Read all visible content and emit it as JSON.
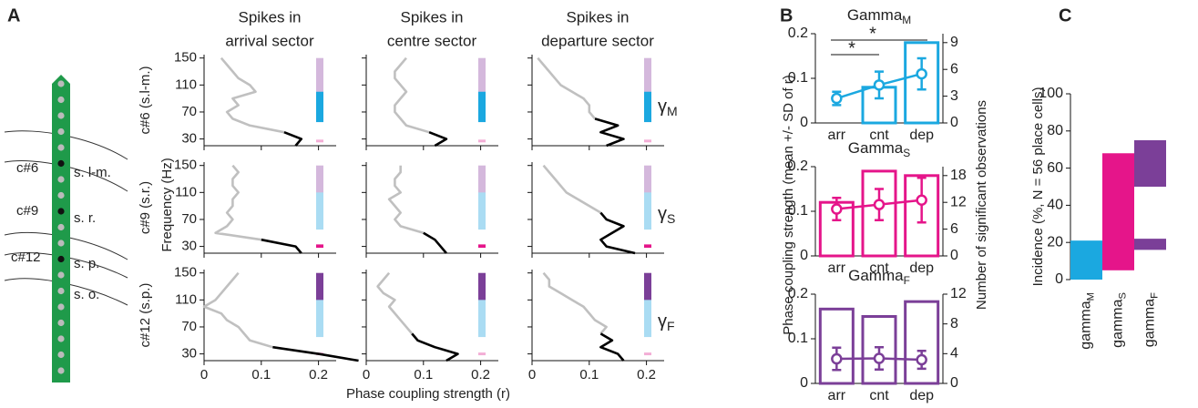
{
  "panel_labels": [
    "A",
    "B",
    "C"
  ],
  "probe": {
    "cells": [
      "c#6",
      "c#9",
      "c#12"
    ],
    "layers": [
      "s. l-m.",
      "s. r.",
      "s. p.",
      "s. o."
    ]
  },
  "panel_a": {
    "column_titles": [
      {
        "lines": [
          "Spikes in",
          "arrival sector"
        ],
        "color": "#e8141c"
      },
      {
        "lines": [
          "Spikes in",
          "centre sector"
        ],
        "color": "#f08c1e"
      },
      {
        "lines": [
          "Spikes in",
          "departure sector"
        ],
        "color": "#1aa64a"
      }
    ],
    "ylabel": "Frequency (Hz)",
    "xlabel": "Phase coupling strength (r)",
    "rows": [
      {
        "label": "c#6 (s.l-m.)",
        "gamma": {
          "symbol": "γ",
          "sub": "M",
          "color": "#1ba8e0"
        },
        "bands": [
          {
            "color": "#d4b8dc",
            "range": [
              90,
              150
            ]
          },
          {
            "color": "#1ba8e0",
            "range": [
              55,
              100
            ]
          },
          {
            "color": "#f3aed6",
            "range": [
              25,
              29
            ]
          }
        ]
      },
      {
        "label": "c#9 (s.r.)",
        "gamma": {
          "symbol": "γ",
          "sub": "S",
          "color": "#e5158a"
        },
        "bands": [
          {
            "color": "#d4b8dc",
            "range": [
              90,
              150
            ]
          },
          {
            "color": "#aadcf3",
            "range": [
              55,
              110
            ]
          },
          {
            "color": "#e5158a",
            "range": [
              28,
              33
            ]
          }
        ]
      },
      {
        "label": "c#12 (s.p.)",
        "gamma": {
          "symbol": "γ",
          "sub": "F",
          "color": "#7b3f98"
        },
        "bands": [
          {
            "color": "#7b3f98",
            "range": [
              90,
              150
            ]
          },
          {
            "color": "#aadcf3",
            "range": [
              55,
              110
            ]
          },
          {
            "color": "#f3aed6",
            "range": [
              28,
              32
            ]
          }
        ]
      }
    ]
  },
  "panel_b": {
    "ylabel": "Phase coupling strength (mean +/- SD of r)",
    "y2label": "Number of significant observations",
    "stars": [
      "*",
      "*"
    ]
  },
  "chart_data": [
    {
      "type": "frequency_profile",
      "xlim": [
        0,
        0.25
      ],
      "xticks": [
        0,
        0.1,
        0.2
      ],
      "ylim": [
        20,
        155
      ],
      "yticks": [
        30,
        70,
        110,
        150
      ],
      "frequencies": [
        20,
        30,
        40,
        50,
        60,
        70,
        80,
        90,
        100,
        110,
        120,
        130,
        140,
        150
      ],
      "series": [
        {
          "color": "#c0c0c0",
          "values": [
            null,
            null,
            0.14,
            0.08,
            0.05,
            0.04,
            0.06,
            0.05,
            0.09,
            0.08,
            0.06,
            0.05,
            0.04,
            0.03
          ]
        },
        {
          "color": "#000000",
          "values": [
            0.16,
            0.17,
            0.14,
            null,
            null,
            null,
            null,
            null,
            null,
            null,
            null,
            null,
            null,
            null
          ]
        }
      ]
    },
    {
      "type": "frequency_profile",
      "xlim": [
        0,
        0.25
      ],
      "xticks": [
        0,
        0.1,
        0.2
      ],
      "ylim": [
        20,
        155
      ],
      "yticks": [
        30,
        70,
        110,
        150
      ],
      "frequencies": [
        20,
        30,
        40,
        50,
        60,
        70,
        80,
        90,
        100,
        110,
        120,
        130,
        140,
        150
      ],
      "series": [
        {
          "color": "#c0c0c0",
          "values": [
            null,
            null,
            0.11,
            0.07,
            0.06,
            0.05,
            0.05,
            0.06,
            0.07,
            0.06,
            0.05,
            0.05,
            0.06,
            0.07
          ]
        },
        {
          "color": "#000000",
          "values": [
            0.12,
            0.14,
            0.11,
            null,
            null,
            null,
            null,
            null,
            null,
            null,
            null,
            null,
            null,
            null
          ]
        }
      ]
    },
    {
      "type": "frequency_profile",
      "xlim": [
        0,
        0.25
      ],
      "xticks": [
        0,
        0.1,
        0.2
      ],
      "ylim": [
        20,
        155
      ],
      "yticks": [
        30,
        70,
        110,
        150
      ],
      "frequencies": [
        20,
        30,
        40,
        50,
        60,
        70,
        80,
        90,
        100,
        110,
        120,
        130,
        140,
        150
      ],
      "series": [
        {
          "color": "#c0c0c0",
          "values": [
            null,
            null,
            null,
            null,
            0.11,
            0.1,
            0.1,
            0.09,
            0.07,
            0.05,
            0.04,
            0.03,
            0.02,
            0.01
          ]
        },
        {
          "color": "#000000",
          "values": [
            0.13,
            0.16,
            0.12,
            0.15,
            0.11,
            null,
            null,
            null,
            null,
            null,
            null,
            null,
            null,
            null
          ]
        }
      ]
    },
    {
      "type": "frequency_profile",
      "xlim": [
        0,
        0.25
      ],
      "xticks": [
        0,
        0.1,
        0.2
      ],
      "ylim": [
        20,
        155
      ],
      "yticks": [
        30,
        70,
        110,
        150
      ],
      "frequencies": [
        20,
        30,
        40,
        50,
        60,
        70,
        80,
        90,
        100,
        110,
        120,
        130,
        140,
        150
      ],
      "series": [
        {
          "color": "#c0c0c0",
          "values": [
            null,
            null,
            0.1,
            0.02,
            0.04,
            0.05,
            0.04,
            0.05,
            0.05,
            0.06,
            0.05,
            0.05,
            0.06,
            0.05
          ]
        },
        {
          "color": "#000000",
          "values": [
            0.17,
            0.16,
            0.1,
            null,
            null,
            null,
            null,
            null,
            null,
            null,
            null,
            null,
            null,
            null
          ]
        }
      ]
    },
    {
      "type": "frequency_profile",
      "xlim": [
        0,
        0.25
      ],
      "xticks": [
        0,
        0.1,
        0.2
      ],
      "ylim": [
        20,
        155
      ],
      "yticks": [
        30,
        70,
        110,
        150
      ],
      "frequencies": [
        20,
        30,
        40,
        50,
        60,
        70,
        80,
        90,
        100,
        110,
        120,
        130,
        140,
        150
      ],
      "series": [
        {
          "color": "#c0c0c0",
          "values": [
            null,
            null,
            null,
            0.1,
            0.06,
            0.05,
            0.06,
            0.05,
            0.04,
            0.06,
            0.05,
            0.05,
            0.06,
            0.06
          ]
        },
        {
          "color": "#000000",
          "values": [
            0.14,
            0.13,
            0.12,
            0.1,
            null,
            null,
            null,
            null,
            null,
            null,
            null,
            null,
            null,
            null
          ]
        }
      ]
    },
    {
      "type": "frequency_profile",
      "xlim": [
        0,
        0.25
      ],
      "xticks": [
        0,
        0.1,
        0.2
      ],
      "ylim": [
        20,
        155
      ],
      "yticks": [
        30,
        70,
        110,
        150
      ],
      "frequencies": [
        20,
        30,
        40,
        50,
        60,
        70,
        80,
        90,
        100,
        110,
        120,
        130,
        140,
        150
      ],
      "series": [
        {
          "color": "#c0c0c0",
          "values": [
            null,
            null,
            null,
            null,
            null,
            null,
            0.12,
            0.1,
            0.08,
            0.06,
            0.05,
            0.04,
            0.03,
            0.02
          ]
        },
        {
          "color": "#000000",
          "values": [
            0.18,
            0.13,
            0.12,
            0.14,
            0.16,
            0.13,
            0.12,
            null,
            null,
            null,
            null,
            null,
            null,
            null
          ]
        }
      ]
    },
    {
      "type": "frequency_profile",
      "xlim": [
        0,
        0.25
      ],
      "xticks": [
        0,
        0.1,
        0.2
      ],
      "ylim": [
        20,
        155
      ],
      "yticks": [
        30,
        70,
        110,
        150
      ],
      "frequencies": [
        20,
        30,
        40,
        50,
        60,
        70,
        80,
        90,
        100,
        110,
        120,
        130,
        140,
        150
      ],
      "series": [
        {
          "color": "#c0c0c0",
          "values": [
            null,
            null,
            0.12,
            0.08,
            0.07,
            0.06,
            0.04,
            0.03,
            0,
            0.02,
            0.03,
            0.04,
            0.05,
            0.06
          ]
        },
        {
          "color": "#000000",
          "values": [
            0.27,
            0.2,
            0.12,
            null,
            null,
            null,
            null,
            null,
            null,
            null,
            null,
            null,
            null,
            null
          ]
        }
      ]
    },
    {
      "type": "frequency_profile",
      "xlim": [
        0,
        0.25
      ],
      "xticks": [
        0,
        0.1,
        0.2
      ],
      "ylim": [
        20,
        155
      ],
      "yticks": [
        30,
        70,
        110,
        150
      ],
      "frequencies": [
        20,
        30,
        40,
        50,
        60,
        70,
        80,
        90,
        100,
        110,
        120,
        130,
        140,
        150
      ],
      "series": [
        {
          "color": "#c0c0c0",
          "values": [
            null,
            null,
            null,
            null,
            0.08,
            0.07,
            0.06,
            0.05,
            0.04,
            0.05,
            0.03,
            0.02,
            0.03,
            0.04
          ]
        },
        {
          "color": "#000000",
          "values": [
            0.14,
            0.16,
            0.12,
            0.09,
            0.08,
            null,
            null,
            null,
            null,
            null,
            null,
            null,
            null,
            null
          ]
        }
      ]
    },
    {
      "type": "frequency_profile",
      "xlim": [
        0,
        0.25
      ],
      "xticks": [
        0,
        0.1,
        0.2
      ],
      "ylim": [
        20,
        155
      ],
      "yticks": [
        30,
        70,
        110,
        150
      ],
      "frequencies": [
        20,
        30,
        40,
        50,
        60,
        70,
        80,
        90,
        100,
        110,
        120,
        130,
        140,
        150
      ],
      "series": [
        {
          "color": "#c0c0c0",
          "values": [
            null,
            null,
            null,
            null,
            0.12,
            0.13,
            0.11,
            0.1,
            0.09,
            0.07,
            0.05,
            0.03,
            0.03,
            0.02
          ]
        },
        {
          "color": "#000000",
          "values": [
            0.16,
            0.15,
            0.12,
            0.14,
            0.12,
            null,
            null,
            null,
            null,
            null,
            null,
            null,
            null,
            null
          ]
        }
      ]
    },
    {
      "type": "bar_line",
      "title": {
        "text": "Gamma",
        "sub": "M"
      },
      "color": "#1ba8e0",
      "categories": [
        "arr",
        "cnt",
        "dep"
      ],
      "category_colors": [
        "#e8141c",
        "#f08c1e",
        "#1aa64a"
      ],
      "ylim": [
        0,
        0.2
      ],
      "yticks": [
        0,
        0.1,
        0.2
      ],
      "y2lim": [
        0,
        10
      ],
      "y2ticks": [
        0,
        3,
        6,
        9
      ],
      "series": [
        {
          "kind": "bar",
          "axis": "y2",
          "values": [
            0,
            4,
            9
          ]
        },
        {
          "kind": "line",
          "values": [
            0.055,
            0.085,
            0.11
          ],
          "errors": [
            0.015,
            0.03,
            0.035
          ]
        }
      ]
    },
    {
      "type": "bar_line",
      "title": {
        "text": "Gamma",
        "sub": "S"
      },
      "color": "#e5158a",
      "categories": [
        "arr",
        "cnt",
        "dep"
      ],
      "category_colors": [
        "#e8141c",
        "#f08c1e",
        "#1aa64a"
      ],
      "ylim": [
        0,
        0.2
      ],
      "yticks": [
        0,
        0.1,
        0.2
      ],
      "y2lim": [
        0,
        20
      ],
      "y2ticks": [
        0,
        6,
        12,
        18
      ],
      "series": [
        {
          "kind": "bar",
          "axis": "y2",
          "values": [
            12,
            19,
            18
          ]
        },
        {
          "kind": "line",
          "values": [
            0.105,
            0.115,
            0.125
          ],
          "errors": [
            0.025,
            0.035,
            0.05
          ]
        }
      ]
    },
    {
      "type": "bar_line",
      "title": {
        "text": "Gamma",
        "sub": "F"
      },
      "color": "#7b3f98",
      "categories": [
        "arr",
        "cnt",
        "dep"
      ],
      "category_colors": [
        "#e8141c",
        "#f08c1e",
        "#1aa64a"
      ],
      "ylim": [
        0,
        0.2
      ],
      "yticks": [
        0,
        0.1,
        0.2
      ],
      "y2lim": [
        0,
        12
      ],
      "y2ticks": [
        0,
        4,
        8,
        12
      ],
      "series": [
        {
          "kind": "bar",
          "axis": "y2",
          "values": [
            10,
            9,
            11
          ]
        },
        {
          "kind": "line",
          "values": [
            0.055,
            0.056,
            0.053
          ],
          "errors": [
            0.025,
            0.025,
            0.02
          ]
        }
      ]
    },
    {
      "type": "floating_bar",
      "ylabel": "Incidence (%, N = 56 place cells)",
      "ylim": [
        0,
        100
      ],
      "yticks": [
        0,
        20,
        40,
        60,
        80,
        100
      ],
      "categories": [
        {
          "text": "gamma",
          "sub": "M"
        },
        {
          "text": "gamma",
          "sub": "S"
        },
        {
          "text": "gamma",
          "sub": "F"
        }
      ],
      "colors": [
        "#1ba8e0",
        "#e5158a",
        "#7b3f98"
      ],
      "ranges": [
        [
          [
            0,
            21
          ]
        ],
        [
          [
            5,
            68
          ]
        ],
        [
          [
            50,
            75
          ],
          [
            16,
            22
          ]
        ]
      ]
    }
  ]
}
